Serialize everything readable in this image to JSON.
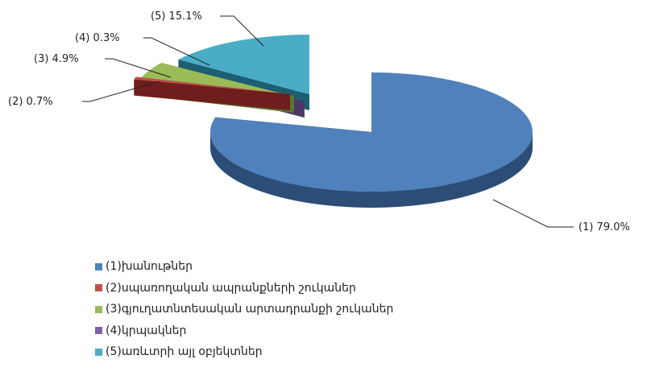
{
  "chart_data": {
    "type": "pie",
    "variant": "3d-exploded",
    "title": "",
    "slices": [
      {
        "id": "1",
        "name": "(1)խանութներ",
        "value": 79.0,
        "label": "(1) 79.0%",
        "color": "#4f81bd",
        "side_color": "#2c4d76"
      },
      {
        "id": "2",
        "name": "(2)սպառողական ապրանքների շուկաներ",
        "value": 0.7,
        "label": "(2) 0.7%",
        "color": "#c0504d",
        "side_color": "#6e1e1c"
      },
      {
        "id": "3",
        "name": "(3)գյուղատնտեսական արտադրանքի շուկաներ",
        "value": 4.9,
        "label": "(3) 4.9%",
        "color": "#9bbb59",
        "side_color": "#5b7330"
      },
      {
        "id": "4",
        "name": "(4)կրպակներ",
        "value": 0.3,
        "label": "(4) 0.3%",
        "color": "#8064a2",
        "side_color": "#4a3966"
      },
      {
        "id": "5",
        "name": "(5)առևտրի այլ օբյեկտներ",
        "value": 15.1,
        "label": "(5) 15.1%",
        "color": "#4bacc6",
        "side_color": "#1d5f72"
      }
    ],
    "legend_position": "bottom-left"
  }
}
